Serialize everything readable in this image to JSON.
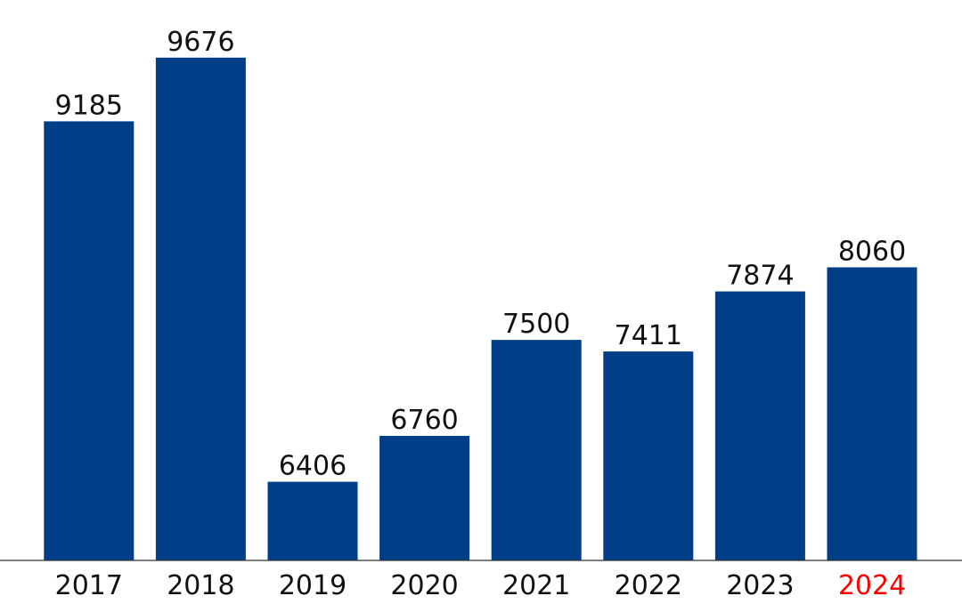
{
  "chart_data": {
    "type": "bar",
    "categories": [
      "2017",
      "2018",
      "2019",
      "2020",
      "2021",
      "2022",
      "2023",
      "2024"
    ],
    "series": [
      {
        "values": [
          9185,
          9676,
          6406,
          6760,
          7500,
          7411,
          7874,
          8060
        ]
      }
    ],
    "data_labels": [
      "9185",
      "9676",
      "6406",
      "6760",
      "7500",
      "7411",
      "7874",
      "8060"
    ],
    "title": "",
    "xlabel": "",
    "ylabel": "",
    "ylim": [
      5800,
      9860
    ],
    "grid": false,
    "legend": "none",
    "y_axis_visible": false,
    "colors": {
      "bar": "#003f87",
      "text": "#111111",
      "highlight_label": "#ff0000",
      "axis": "#333333"
    },
    "highlighted_category": "2024"
  }
}
